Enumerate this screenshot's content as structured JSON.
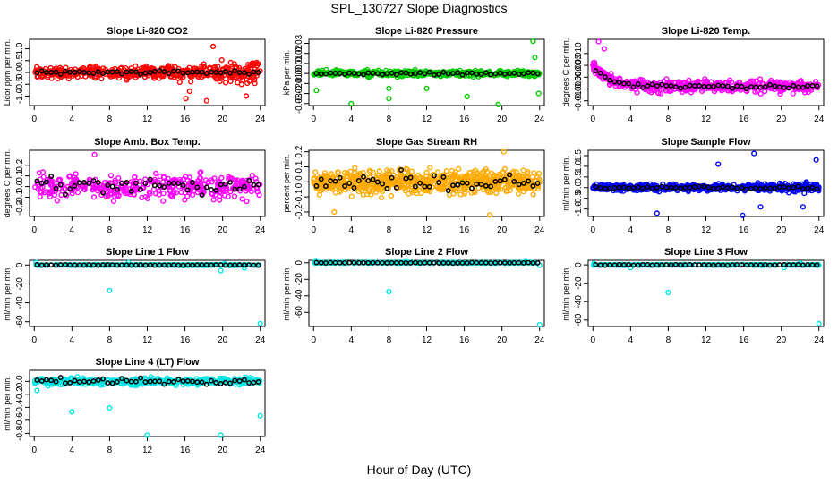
{
  "title": "SPL_130727  Slope Diagnostics",
  "xlabel": "Hour of Day (UTC)",
  "chart_data": [
    {
      "type": "scatter",
      "title": "Slope Li-820 CO2",
      "ylabel": "Licor ppm per min.",
      "color": "#ff0000",
      "ylim": [
        -1.4,
        1.4
      ],
      "yticks": [
        -1.0,
        -0.5,
        0.0,
        0.5,
        1.0
      ],
      "ytick_labels": [
        "-1.0",
        "-0.5",
        "0.0",
        "0.5",
        "1.0"
      ],
      "xlim": [
        -0.5,
        24.5
      ],
      "xticks": [
        0,
        4,
        8,
        12,
        16,
        20,
        24
      ],
      "xtick_labels": [
        "0",
        "4",
        "8",
        "12",
        "16",
        "20",
        "24"
      ],
      "base": 0.0,
      "noise": 0.22,
      "spread_growth": 2.0,
      "black_noise": 0.08,
      "n": 500,
      "outliers": [
        [
          16.1,
          -1.1
        ],
        [
          16.5,
          -0.8
        ],
        [
          19.0,
          1.1
        ],
        [
          18.3,
          -1.2
        ],
        [
          22.5,
          -1.0
        ]
      ]
    },
    {
      "type": "scatter",
      "title": "Slope Li-820 Pressure",
      "ylabel": "kPa per min.",
      "color": "#00cc00",
      "ylim": [
        -0.032,
        0.034
      ],
      "yticks": [
        -0.03,
        -0.02,
        -0.01,
        0.0,
        0.01,
        0.02,
        0.03
      ],
      "ytick_labels": [
        "-0.03",
        "-0.02",
        "-0.01",
        "0.00",
        "0.01",
        "0.02",
        "0.03"
      ],
      "xlim": [
        -0.5,
        24.5
      ],
      "xticks": [
        0,
        4,
        8,
        12,
        16,
        20,
        24
      ],
      "xtick_labels": [
        "0",
        "4",
        "8",
        "12",
        "16",
        "20",
        "24"
      ],
      "base": 0.0,
      "noise": 0.0025,
      "spread_growth": 1.0,
      "black_noise": 0.0015,
      "n": 500,
      "outliers": [
        [
          0.3,
          -0.017
        ],
        [
          4.0,
          -0.03
        ],
        [
          8.0,
          -0.015
        ],
        [
          8.0,
          -0.025
        ],
        [
          12.0,
          -0.015
        ],
        [
          16.3,
          -0.023
        ],
        [
          19.6,
          -0.031
        ],
        [
          23.3,
          0.032
        ],
        [
          23.9,
          -0.02
        ],
        [
          23.5,
          0.016
        ]
      ]
    },
    {
      "type": "scatter",
      "title": "Slope Li-820 Temp.",
      "ylabel": "degrees C per min.",
      "color": "#ff00ff",
      "ylim": [
        -0.012,
        0.016
      ],
      "yticks": [
        -0.01,
        -0.005,
        0.0,
        0.005,
        0.01
      ],
      "ytick_labels": [
        "-0.01",
        "-0.005",
        "0.000",
        "0.005",
        "0.010"
      ],
      "xlim": [
        -0.5,
        24.5
      ],
      "xticks": [
        0,
        4,
        8,
        12,
        16,
        20,
        24
      ],
      "xtick_labels": [
        "0",
        "4",
        "8",
        "12",
        "16",
        "20",
        "24"
      ],
      "base": -0.004,
      "base_decay": [
        0.009,
        1.6
      ],
      "noise": 0.0022,
      "spread_growth": 1.0,
      "black_noise": 0.001,
      "n": 500,
      "outliers": [
        [
          0.6,
          0.015
        ],
        [
          1.2,
          0.012
        ]
      ]
    },
    {
      "type": "scatter",
      "title": "Slope Amb. Box Temp.",
      "ylabel": "degrees C per min.",
      "color": "#ff00ff",
      "ylim": [
        -0.28,
        0.34
      ],
      "yticks": [
        -0.2,
        -0.1,
        0.0,
        0.1,
        0.2
      ],
      "ytick_labels": [
        "-0.2",
        "-0.1",
        "0.0",
        "0.1",
        "0.2"
      ],
      "xlim": [
        -0.5,
        24.5
      ],
      "xticks": [
        0,
        4,
        8,
        12,
        16,
        20,
        24
      ],
      "xtick_labels": [
        "0",
        "4",
        "8",
        "12",
        "16",
        "20",
        "24"
      ],
      "base": 0.0,
      "noise": 0.1,
      "spread_growth": 1.0,
      "black_noise": 0.07,
      "n": 380,
      "outliers": [
        [
          6.4,
          0.3
        ]
      ]
    },
    {
      "type": "scatter",
      "title": "Slope Gas Stream RH",
      "ylabel": "percent per min.",
      "color": "#ffaa00",
      "ylim": [
        -0.23,
        0.21
      ],
      "yticks": [
        -0.2,
        -0.1,
        0.0,
        0.1,
        0.2
      ],
      "ytick_labels": [
        "-0.2",
        "-0.1",
        "0.0",
        "0.1",
        "0.2"
      ],
      "xlim": [
        -0.5,
        24.5
      ],
      "xticks": [
        0,
        4,
        8,
        12,
        16,
        20,
        24
      ],
      "xtick_labels": [
        "0",
        "4",
        "8",
        "12",
        "16",
        "20",
        "24"
      ],
      "base": 0.0,
      "noise": 0.065,
      "spread_growth": 1.0,
      "black_noise": 0.06,
      "n": 700,
      "outliers": [
        [
          2.2,
          -0.2
        ],
        [
          18.7,
          -0.22
        ],
        [
          20.2,
          0.2
        ]
      ]
    },
    {
      "type": "scatter",
      "title": "Slope Sample Flow",
      "ylabel": "ml/min per min.",
      "color": "#0000ff",
      "ylim": [
        -1.35,
        1.75
      ],
      "yticks": [
        -1.0,
        -0.5,
        0.0,
        0.5,
        1.0,
        1.5
      ],
      "ytick_labels": [
        "-1.0",
        "-0.5",
        "0.0",
        "0.5",
        "1.0",
        "1.5"
      ],
      "xlim": [
        -0.5,
        24.5
      ],
      "xticks": [
        0,
        4,
        8,
        12,
        16,
        20,
        24
      ],
      "xtick_labels": [
        "0",
        "4",
        "8",
        "12",
        "16",
        "20",
        "24"
      ],
      "base": 0.0,
      "noise": 0.13,
      "spread_growth": 1.5,
      "black_noise": 0.07,
      "n": 550,
      "outliers": [
        [
          6.8,
          -1.2
        ],
        [
          15.9,
          -1.3
        ],
        [
          17.1,
          1.6
        ],
        [
          13.3,
          1.1
        ],
        [
          23.7,
          1.3
        ],
        [
          17.8,
          -0.9
        ],
        [
          22.3,
          -0.9
        ]
      ]
    },
    {
      "type": "scatter",
      "title": "Slope Line 1 Flow",
      "ylabel": "ml/min per min.",
      "color": "#00e5e5",
      "ylim": [
        -65,
        5
      ],
      "yticks": [
        -60,
        -40,
        -20,
        0
      ],
      "ytick_labels": [
        "-60",
        "-40",
        "-20",
        "0"
      ],
      "xlim": [
        -0.5,
        24.5
      ],
      "xticks": [
        0,
        4,
        8,
        12,
        16,
        20,
        24
      ],
      "xtick_labels": [
        "0",
        "4",
        "8",
        "12",
        "16",
        "20",
        "24"
      ],
      "base": 0.0,
      "noise": 0.35,
      "spread_growth": 1.0,
      "black_noise": 0.3,
      "n": 200,
      "outliers": [
        [
          8.0,
          -27
        ],
        [
          24.0,
          -62
        ],
        [
          19.8,
          -6
        ],
        [
          10.0,
          2.5
        ],
        [
          0.2,
          2.5
        ],
        [
          20.2,
          1.5
        ],
        [
          22.3,
          -3
        ]
      ]
    },
    {
      "type": "scatter",
      "title": "Slope Line 2 Flow",
      "ylabel": "ml/min per min.",
      "color": "#00e5e5",
      "ylim": [
        -77,
        3
      ],
      "yticks": [
        -60,
        -40,
        -20,
        0
      ],
      "ytick_labels": [
        "-60",
        "-40",
        "-20",
        "0"
      ],
      "xlim": [
        -0.5,
        24.5
      ],
      "xticks": [
        0,
        4,
        8,
        12,
        16,
        20,
        24
      ],
      "xtick_labels": [
        "0",
        "4",
        "8",
        "12",
        "16",
        "20",
        "24"
      ],
      "base": 0.0,
      "noise": 0.4,
      "spread_growth": 1.0,
      "black_noise": 0.35,
      "n": 200,
      "outliers": [
        [
          8.0,
          -35
        ],
        [
          24.0,
          -75
        ],
        [
          0.2,
          1.5
        ],
        [
          9.8,
          1.5
        ],
        [
          22.5,
          1.5
        ],
        [
          24.0,
          -3
        ]
      ]
    },
    {
      "type": "scatter",
      "title": "Slope Line 3 Flow",
      "ylabel": "ml/min per min.",
      "color": "#00e5e5",
      "ylim": [
        -67,
        5
      ],
      "yticks": [
        -60,
        -40,
        -20,
        0
      ],
      "ytick_labels": [
        "-60",
        "-40",
        "-20",
        "0"
      ],
      "xlim": [
        -0.5,
        24.5
      ],
      "xticks": [
        0,
        4,
        8,
        12,
        16,
        20,
        24
      ],
      "xtick_labels": [
        "0",
        "4",
        "8",
        "12",
        "16",
        "20",
        "24"
      ],
      "base": 0.0,
      "noise": 0.4,
      "spread_growth": 1.0,
      "black_noise": 0.35,
      "n": 200,
      "outliers": [
        [
          8.0,
          -30
        ],
        [
          24.0,
          -64
        ],
        [
          4.0,
          -3
        ],
        [
          20.3,
          -3
        ],
        [
          0.1,
          1.5
        ],
        [
          22.0,
          2
        ]
      ]
    },
    {
      "type": "scatter",
      "title": "Slope Line 4 (LT) Flow",
      "ylabel": "ml/min per min.",
      "color": "#00e5e5",
      "ylim": [
        -0.85,
        0.17
      ],
      "yticks": [
        -0.8,
        -0.6,
        -0.4,
        -0.2,
        0.0
      ],
      "ytick_labels": [
        "-0.8",
        "-0.6",
        "-0.4",
        "-0.2",
        "0.0"
      ],
      "xlim": [
        -0.5,
        24.5
      ],
      "xticks": [
        0,
        4,
        8,
        12,
        16,
        20,
        24
      ],
      "xtick_labels": [
        "0",
        "4",
        "8",
        "12",
        "16",
        "20",
        "24"
      ],
      "base": 0.0,
      "noise": 0.045,
      "spread_growth": 1.0,
      "black_noise": 0.04,
      "n": 400,
      "outliers": [
        [
          4.0,
          -0.47
        ],
        [
          8.0,
          -0.41
        ],
        [
          12.0,
          -0.83
        ],
        [
          19.8,
          -0.83
        ],
        [
          24.0,
          -0.53
        ],
        [
          0.3,
          -0.14
        ]
      ]
    }
  ]
}
